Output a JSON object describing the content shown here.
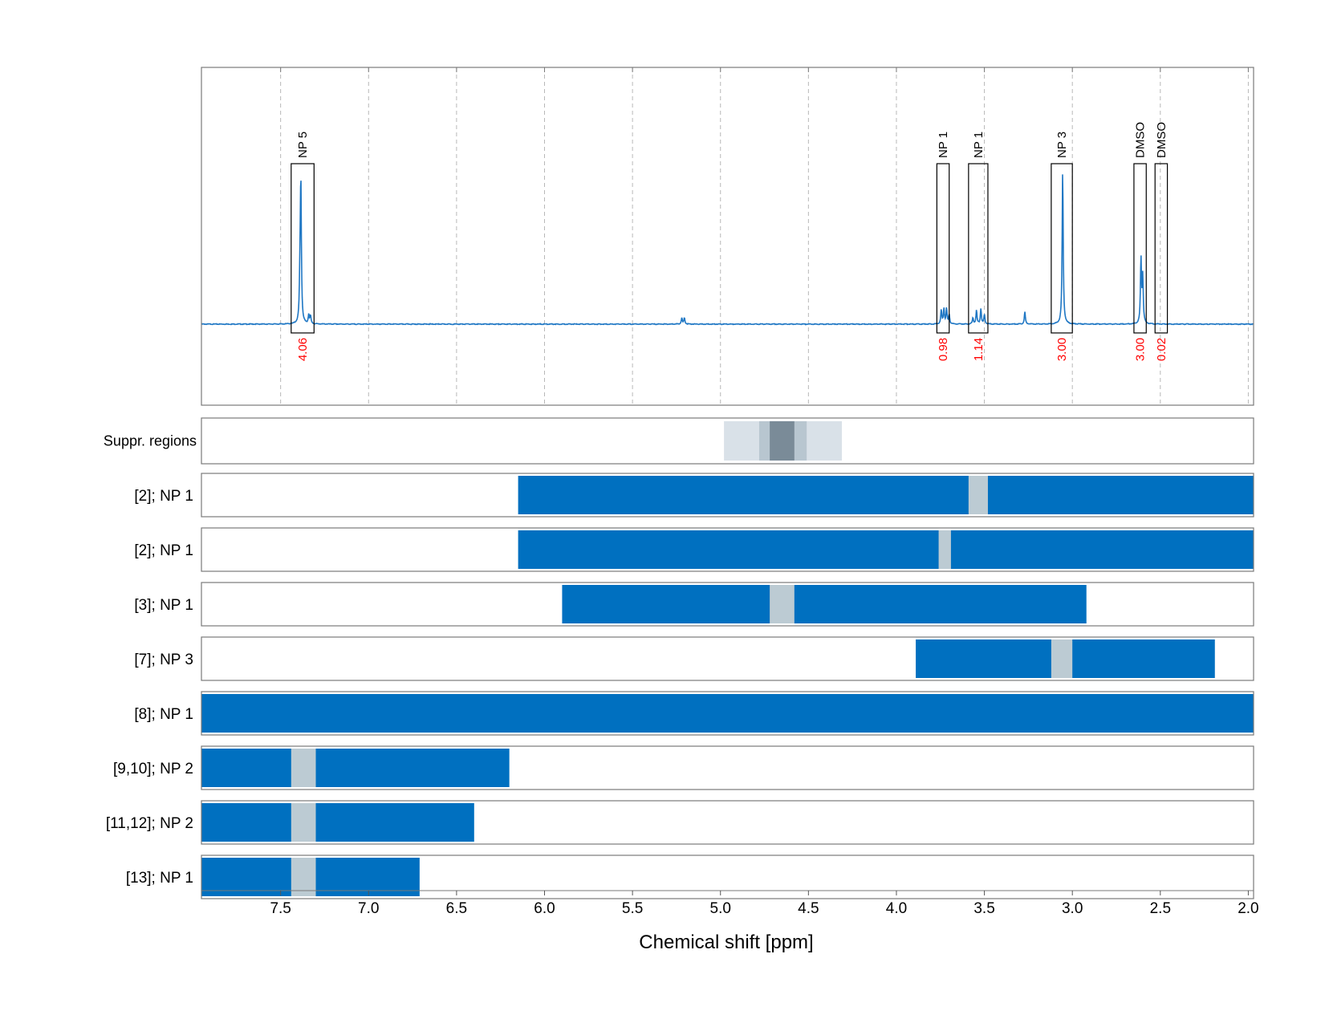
{
  "chart_data": {
    "type": "nmr-spectrum-with-range-bars",
    "xlabel": "Chemical shift [ppm]",
    "x_reversed": true,
    "xlim": [
      7.95,
      1.97
    ],
    "x_ticks": [
      "7.5",
      "7.0",
      "6.5",
      "6.0",
      "5.5",
      "5.0",
      "4.5",
      "4.0",
      "3.5",
      "3.0",
      "2.5",
      "2.0"
    ],
    "grid": "vertical dashed",
    "colors": {
      "spectrum": "#1f77c4",
      "range_bar": "#0070c0",
      "bar_highlight": "#bccbd3",
      "integral_value": "#ff0000",
      "suppr_light": "#d9e1e8",
      "suppr_mid": "#b8c6d0",
      "suppr_dark": "#7a8b98"
    },
    "spectrum": {
      "baseline_fraction": 0.76,
      "peaks": [
        {
          "x": 7.385,
          "height": 0.91
        },
        {
          "x": 7.39,
          "height": 0.25
        },
        {
          "x": 7.34,
          "height": 0.06
        },
        {
          "x": 7.33,
          "height": 0.05
        },
        {
          "x": 5.22,
          "height": 0.04
        },
        {
          "x": 5.205,
          "height": 0.04
        },
        {
          "x": 3.745,
          "height": 0.09
        },
        {
          "x": 3.73,
          "height": 0.1
        },
        {
          "x": 3.715,
          "height": 0.1
        },
        {
          "x": 3.7,
          "height": 0.06
        },
        {
          "x": 3.565,
          "height": 0.04
        },
        {
          "x": 3.545,
          "height": 0.09
        },
        {
          "x": 3.52,
          "height": 0.1
        },
        {
          "x": 3.5,
          "height": 0.06
        },
        {
          "x": 3.27,
          "height": 0.08
        },
        {
          "x": 3.055,
          "height": 1.0
        },
        {
          "x": 2.61,
          "height": 0.42
        },
        {
          "x": 2.6,
          "height": 0.3
        }
      ],
      "annotations": [
        {
          "label": "NP 5",
          "x_from": 7.44,
          "x_to": 7.31,
          "integral": "4.06"
        },
        {
          "label": "NP 1",
          "x_from": 3.77,
          "x_to": 3.7,
          "integral": "0.98"
        },
        {
          "label": "NP 1",
          "x_from": 3.59,
          "x_to": 3.48,
          "integral": "1.14"
        },
        {
          "label": "NP 3",
          "x_from": 3.12,
          "x_to": 3.0,
          "integral": "3.00"
        },
        {
          "label": "DMSO",
          "x_from": 2.65,
          "x_to": 2.58,
          "integral": "3.00"
        },
        {
          "label": "DMSO",
          "x_from": 2.53,
          "x_to": 2.46,
          "integral": "0.02"
        }
      ]
    },
    "suppression_regions": {
      "label": "Suppr. regions",
      "bands": [
        {
          "x_from": 4.98,
          "x_to": 4.31,
          "shade": "light"
        },
        {
          "x_from": 4.78,
          "x_to": 4.51,
          "shade": "mid"
        },
        {
          "x_from": 4.72,
          "x_to": 4.58,
          "shade": "dark"
        }
      ]
    },
    "range_rows": [
      {
        "label": "[2]; NP 1",
        "bar_from": 6.15,
        "bar_to": 1.97,
        "highlight_from": 3.59,
        "highlight_to": 3.48
      },
      {
        "label": "[2]; NP 1",
        "bar_from": 6.15,
        "bar_to": 1.97,
        "highlight_from": 3.76,
        "highlight_to": 3.69
      },
      {
        "label": "[3]; NP 1",
        "bar_from": 5.9,
        "bar_to": 2.92,
        "highlight_from": 4.72,
        "highlight_to": 4.58
      },
      {
        "label": "[7]; NP 3",
        "bar_from": 3.89,
        "bar_to": 2.19,
        "highlight_from": 3.12,
        "highlight_to": 3.0
      },
      {
        "label": "[8]; NP 1",
        "bar_from": 7.95,
        "bar_to": 1.97,
        "highlight_from": null,
        "highlight_to": null
      },
      {
        "label": "[9,10]; NP 2",
        "bar_from": 7.95,
        "bar_to": 6.2,
        "highlight_from": 7.44,
        "highlight_to": 7.3
      },
      {
        "label": "[11,12]; NP 2",
        "bar_from": 7.95,
        "bar_to": 6.4,
        "highlight_from": 7.44,
        "highlight_to": 7.3
      },
      {
        "label": "[13]; NP 1",
        "bar_from": 7.95,
        "bar_to": 6.71,
        "highlight_from": 7.44,
        "highlight_to": 7.3
      }
    ]
  }
}
